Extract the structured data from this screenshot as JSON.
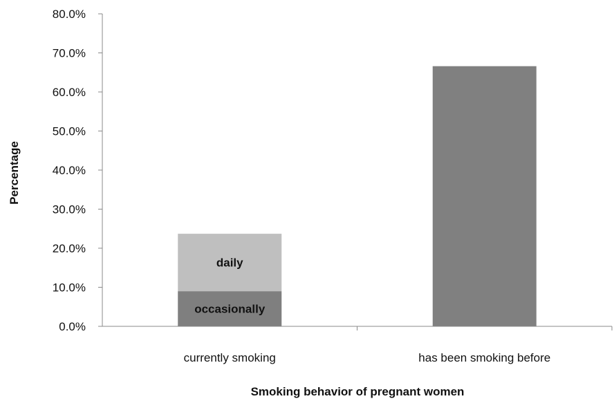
{
  "chart_data": {
    "type": "bar",
    "stacked": true,
    "categories": [
      "currently smoking",
      "has been smoking before"
    ],
    "series": [
      {
        "name": "occasionally",
        "values": [
          9.0,
          0
        ],
        "color": "#7f7f7f",
        "label_on_bar": true
      },
      {
        "name": "daily",
        "values": [
          14.7,
          0
        ],
        "color": "#bfbfbf",
        "label_on_bar": true
      },
      {
        "name": "",
        "values": [
          0,
          66.6
        ],
        "color": "#808080",
        "label_on_bar": false
      }
    ],
    "xlabel": "Smoking behavior of pregnant women",
    "ylabel": "Percentage",
    "ylim": [
      0,
      80
    ],
    "yticks": [
      "0.0%",
      "10.0%",
      "20.0%",
      "30.0%",
      "40.0%",
      "50.0%",
      "60.0%",
      "70.0%",
      "80.0%"
    ],
    "grid": false,
    "legend": "none"
  }
}
